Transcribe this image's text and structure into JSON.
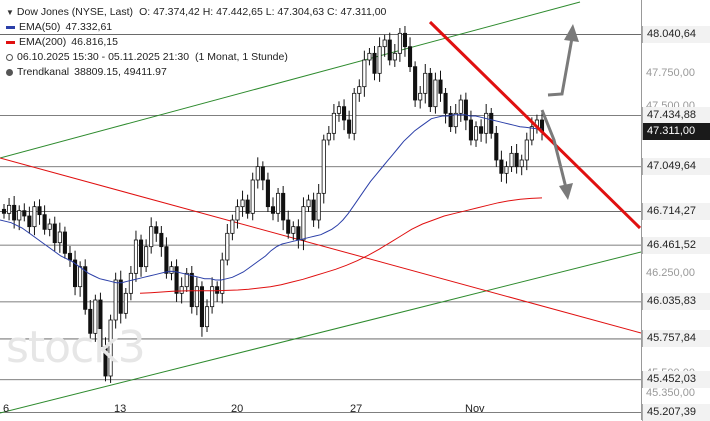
{
  "legend": {
    "instrument": "Dow Jones (NYSE, Last)",
    "ohlc": "O: 47.374,42  H: 47.442,65  L: 47.304,63  C: 47.311,00",
    "ema50_label": "EMA(50)",
    "ema50_value": "47.332,61",
    "ema200_label": "EMA(200)",
    "ema200_value": "46.816,15",
    "period": "06.10.2025 15:30 - 05.11.2025 21:30",
    "period_detail": "(1 Monat, 1 Stunde)",
    "channel_label": "Trendkanal",
    "channel_value": "38809.15, 49411.97"
  },
  "watermark": "stock3",
  "colors": {
    "candle": "#111111",
    "ema50": "#2b3fa8",
    "ema200": "#e01010",
    "channel": "#2e8b2e",
    "red_line": "#e01010",
    "arrow": "#7a7a7a",
    "grid": "#555555"
  },
  "chart_data": {
    "type": "candlestick",
    "title": "Dow Jones (NYSE, Last)",
    "ylim": [
      45150,
      48300
    ],
    "x_ticks": [
      "6",
      "13",
      "20",
      "27",
      "Nov"
    ],
    "y_ticks": [
      "48.040,64",
      "47.750,00",
      "47.500,00",
      "47.434,88",
      "47.311,00",
      "47.049,64",
      "46.714,27",
      "46.461,52",
      "46.250,00",
      "46.035,83",
      "45.757,84",
      "45.500,00",
      "45.452,03",
      "45.350,00",
      "45.207,39"
    ],
    "levels": [
      {
        "label": "48.040,64",
        "value": 48040.64
      },
      {
        "label": "47.434,88",
        "value": 47434.88
      },
      {
        "label": "47.049,64",
        "value": 47049.64
      },
      {
        "label": "46.714,27",
        "value": 46714.27
      },
      {
        "label": "46.461,52",
        "value": 46461.52
      },
      {
        "label": "46.035,83",
        "value": 46035.83
      },
      {
        "label": "45.757,84",
        "value": 45757.84
      },
      {
        "label": "45.452,03",
        "value": 45452.03
      },
      {
        "label": "45.207,39",
        "value": 45207.39
      }
    ],
    "current_price": {
      "label": "47.311,00",
      "value": 47311.0
    },
    "faint_ticks": [
      "47.750,00",
      "47.500,00",
      "46.250,00",
      "45.500,00",
      "45.350,00"
    ],
    "close_series": [
      46700,
      46760,
      46650,
      46720,
      46680,
      46600,
      46750,
      46690,
      46580,
      46620,
      46480,
      46560,
      46400,
      46350,
      46150,
      46300,
      45980,
      45800,
      46050,
      45700,
      45480,
      45900,
      46200,
      45950,
      46100,
      46250,
      46500,
      46300,
      46450,
      46600,
      46550,
      46450,
      46250,
      46300,
      46100,
      46150,
      46250,
      46000,
      46150,
      45850,
      46000,
      46150,
      46100,
      46350,
      46550,
      46650,
      46750,
      46800,
      46700,
      46950,
      47050,
      46950,
      46750,
      46700,
      46850,
      46650,
      46550,
      46600,
      46500,
      46750,
      46800,
      46650,
      46850,
      47250,
      47300,
      47450,
      47500,
      47400,
      47300,
      47600,
      47650,
      47850,
      47900,
      47750,
      47950,
      48000,
      47850,
      47900,
      48050,
      47950,
      47800,
      47550,
      47600,
      47750,
      47500,
      47700,
      47600,
      47450,
      47350,
      47450,
      47550,
      47400,
      47250,
      47350,
      47300,
      47450,
      47300,
      47100,
      47000,
      47050,
      47150,
      47050,
      47100,
      47250,
      47350,
      47400,
      47311
    ],
    "ema50_series": [
      46650,
      46640,
      46630,
      46610,
      46590,
      46560,
      46530,
      46500,
      46470,
      46440,
      46410,
      46380,
      46360,
      46340,
      46310,
      46280,
      46250,
      46230,
      46210,
      46200,
      46190,
      46180,
      46180,
      46190,
      46200,
      46210,
      46220,
      46230,
      46240,
      46250,
      46260,
      46265,
      46260,
      46250,
      46240,
      46230,
      46220,
      46210,
      46210,
      46200,
      46200,
      46210,
      46220,
      46240,
      46260,
      46290,
      46320,
      46350,
      46380,
      46420,
      46450,
      46470,
      46480,
      46490,
      46500,
      46510,
      46520,
      46530,
      46540,
      46560,
      46580,
      46610,
      46650,
      46700,
      46760,
      46820,
      46880,
      46940,
      46990,
      47040,
      47090,
      47140,
      47190,
      47240,
      47280,
      47320,
      47350,
      47380,
      47410,
      47420,
      47430,
      47430,
      47440,
      47440,
      47440,
      47430,
      47430,
      47420,
      47410,
      47400,
      47390,
      47380,
      47370,
      47360,
      47350,
      47345,
      47340,
      47335,
      47333
    ],
    "ema200_series": [
      46100,
      46105,
      46110,
      46115,
      46118,
      46120,
      46120,
      46120,
      46122,
      46125,
      46130,
      46140,
      46150,
      46165,
      46185,
      46205,
      46230,
      46255,
      46280,
      46310,
      46345,
      46385,
      46430,
      46480,
      46530,
      46580,
      46620,
      46650,
      46680,
      46700,
      46720,
      46740,
      46760,
      46780,
      46795,
      46805,
      46812,
      46816
    ],
    "annotations": [
      "red downtrend line from 48.040 peak",
      "grey arrow up to 48.040,64",
      "grey arrow down to 46.714,27"
    ]
  }
}
